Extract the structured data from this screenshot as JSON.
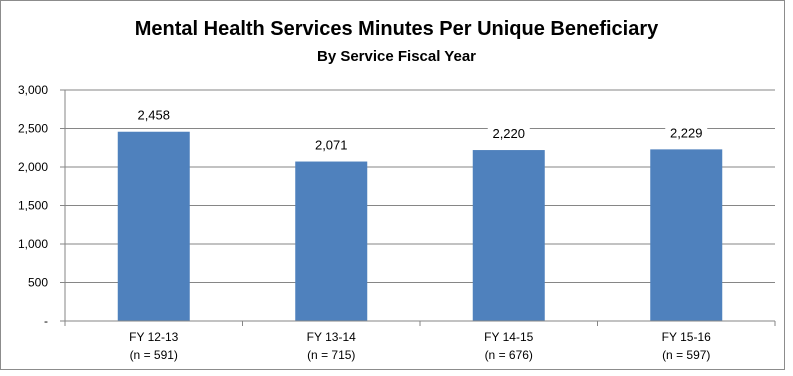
{
  "chart_data": {
    "type": "bar",
    "title": "Mental Health Services Minutes Per Unique Beneficiary",
    "subtitle": "By Service Fiscal Year",
    "categories": [
      "FY 12-13",
      "FY 13-14",
      "FY 14-15",
      "FY 15-16"
    ],
    "category_sublabels": [
      "(n = 591)",
      "(n = 715)",
      "(n = 676)",
      "(n = 597)"
    ],
    "values": [
      2458,
      2071,
      2220,
      2229
    ],
    "value_labels": [
      "2,458",
      "2,071",
      "2,220",
      "2,229"
    ],
    "ylim": [
      0,
      3000
    ],
    "yticks": [
      0,
      500,
      1000,
      1500,
      2000,
      2500,
      3000
    ],
    "ytick_labels": [
      "-",
      "500",
      "1,000",
      "1,500",
      "2,000",
      "2,500",
      "3,000"
    ],
    "grid": true,
    "bar_color": "#4f81bd",
    "grid_color": "#868686"
  }
}
